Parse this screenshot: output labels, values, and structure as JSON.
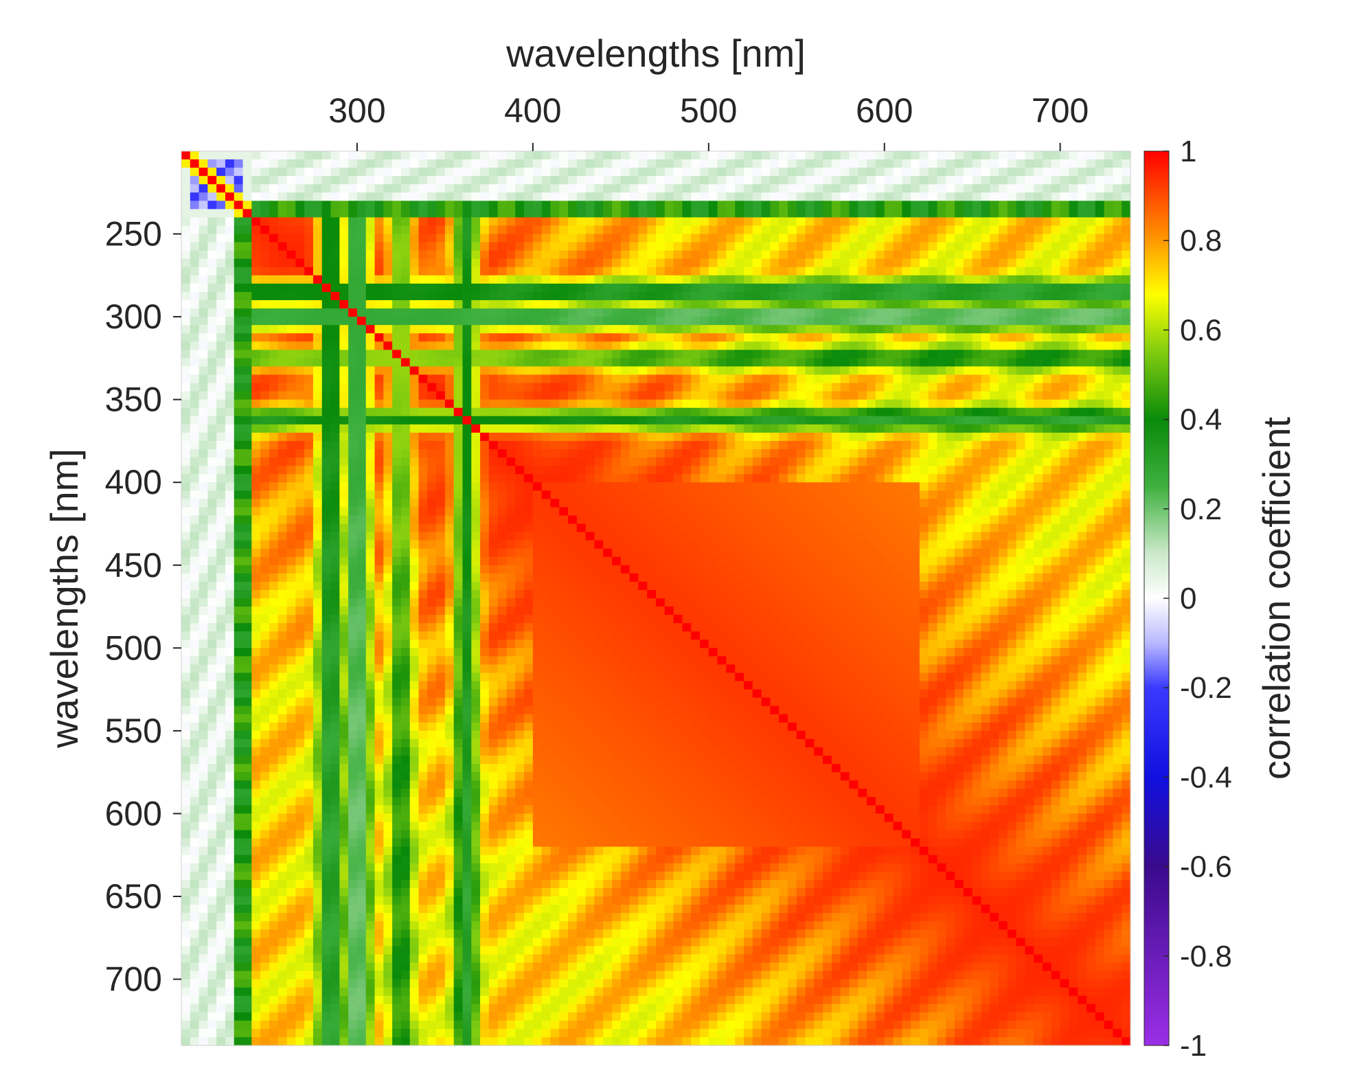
{
  "chart_data": {
    "type": "heatmap",
    "title": "",
    "xlabel": "wavelengths [nm]",
    "ylabel": "wavelengths [nm]",
    "x_axis_position": "top",
    "y_axis_direction": "reversed",
    "xlim": [
      200,
      740
    ],
    "ylim": [
      200,
      740
    ],
    "x_ticks": [
      300,
      400,
      500,
      600,
      700
    ],
    "y_ticks": [
      250,
      300,
      350,
      400,
      450,
      500,
      550,
      600,
      650,
      700
    ],
    "colorbar": {
      "label": "correlation coefficient",
      "range": [
        -1,
        1
      ],
      "ticks": [
        "1",
        "0.8",
        "0.6",
        "0.4",
        "0.2",
        "0",
        "-0.2",
        "-0.4",
        "-0.6",
        "-0.8",
        "-1"
      ],
      "colors": [
        {
          "v": -1.0,
          "c": "#9b2fe6"
        },
        {
          "v": -0.6,
          "c": "#3a0a8c"
        },
        {
          "v": -0.4,
          "c": "#1010e0"
        },
        {
          "v": -0.2,
          "c": "#3a3aff"
        },
        {
          "v": -0.1,
          "c": "#b8b8ff"
        },
        {
          "v": 0.0,
          "c": "#ffffff"
        },
        {
          "v": 0.1,
          "c": "#cbe9cb"
        },
        {
          "v": 0.25,
          "c": "#3fb03f"
        },
        {
          "v": 0.4,
          "c": "#0a8a0a"
        },
        {
          "v": 0.55,
          "c": "#80cc10"
        },
        {
          "v": 0.68,
          "c": "#ffff00"
        },
        {
          "v": 0.8,
          "c": "#ff9900"
        },
        {
          "v": 1.0,
          "c": "#ff0000"
        }
      ]
    },
    "matrix_description": {
      "diagonal": 1.0,
      "uncorrelated_band_nm": [
        200,
        240
      ],
      "uncorrelated_band_value": 0.05,
      "transition_band_nm": [
        230,
        240
      ],
      "transition_value": 0.4,
      "negative_patch_nm": [
        205,
        235
      ],
      "negative_patch_value": -0.15,
      "low_corr_columns_nm": [
        {
          "center": 285,
          "value": 0.45
        },
        {
          "center": 300,
          "value": 0.4
        },
        {
          "center": 362,
          "value": 0.42
        }
      ],
      "low_corr_rows_nm": [
        {
          "center": 285,
          "value": 0.35
        },
        {
          "center": 300,
          "value": 0.2
        },
        {
          "center": 325,
          "value": 0.55
        },
        {
          "center": 362,
          "value": 0.45
        }
      ],
      "high_corr_block_nm": [
        400,
        620
      ],
      "high_corr_block_value": 0.93,
      "far_off_diagonal_value": 0.72
    }
  }
}
